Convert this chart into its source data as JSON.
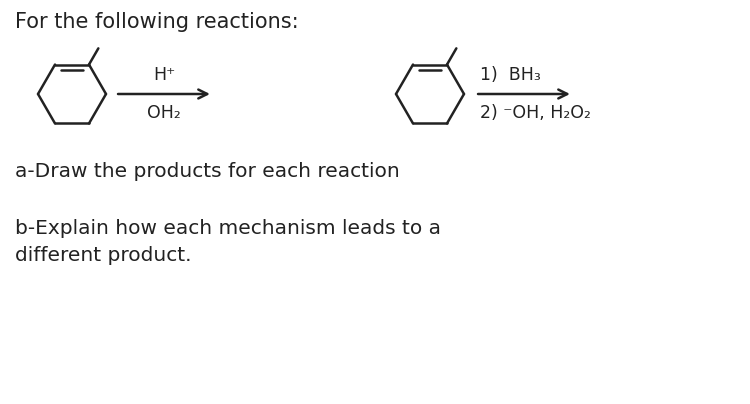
{
  "title": "For the following reactions:",
  "title_fontsize": 15,
  "background_color": "#ffffff",
  "text_color": "#222222",
  "reaction1_above": "H⁺",
  "reaction1_below": "OH₂",
  "reaction2_line1": "1)  BH₃",
  "reaction2_line2": "2) ⁻OH, H₂O₂",
  "question_a": "a-Draw the products for each reaction",
  "question_b1": "b-Explain how each mechanism leads to a",
  "question_b2": "different product.",
  "body_fontsize": 14.5,
  "small_fontsize": 12.5
}
